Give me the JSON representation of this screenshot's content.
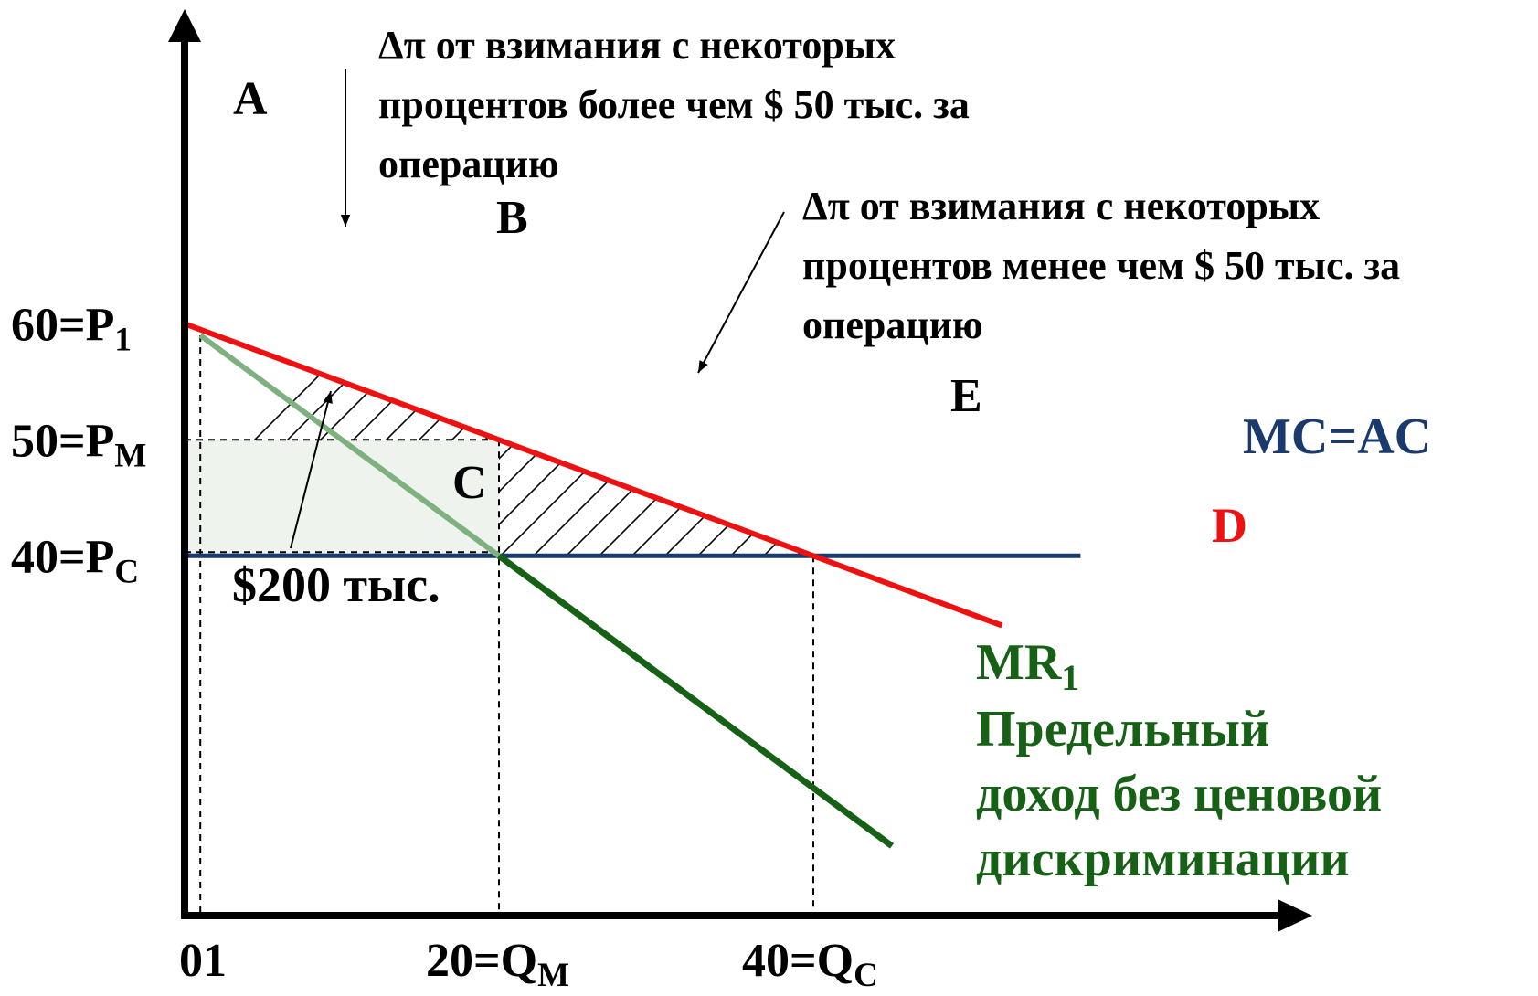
{
  "chart_data": {
    "type": "line",
    "title": "",
    "xlabel": "",
    "ylabel": "",
    "y_ticks": [
      {
        "value": 60,
        "label": "60=P",
        "sub": "1"
      },
      {
        "value": 50,
        "label": "50=P",
        "sub": "M"
      },
      {
        "value": 40,
        "label": "40=P",
        "sub": "C"
      }
    ],
    "x_ticks": [
      {
        "value": 1,
        "label": "01",
        "sub": ""
      },
      {
        "value": 20,
        "label": "20=Q",
        "sub": "M"
      },
      {
        "value": 40,
        "label": "40=Q",
        "sub": "C"
      }
    ],
    "series": [
      {
        "name": "D",
        "color": "#ee1111",
        "points": [
          [
            0,
            60
          ],
          [
            52,
            34
          ]
        ]
      },
      {
        "name": "MR",
        "name_sub": "1",
        "color": "#176117",
        "points": [
          [
            1,
            59
          ],
          [
            20,
            40
          ],
          [
            45,
            15
          ]
        ]
      },
      {
        "name": "MC=AC",
        "color": "#1a3a6e",
        "points": [
          [
            0,
            40
          ],
          [
            57,
            40
          ]
        ]
      }
    ],
    "points": [
      {
        "id": "A",
        "x": 1,
        "y": 59.5
      },
      {
        "id": "B",
        "x": 20,
        "y": 50
      },
      {
        "id": "C",
        "x": 20,
        "y": 40
      },
      {
        "id": "E",
        "x": 40,
        "y": 40
      }
    ],
    "shaded_regions": [
      {
        "name": "profit-rectangle",
        "corners": [
          [
            0,
            50
          ],
          [
            20,
            40
          ]
        ],
        "label": "$200 тыс."
      },
      {
        "name": "hatch-above-50",
        "polygon": [
          [
            0,
            60
          ],
          [
            0,
            50
          ],
          [
            20,
            50
          ]
        ]
      },
      {
        "name": "hatch-below-50",
        "polygon": [
          [
            20,
            50
          ],
          [
            40,
            40
          ],
          [
            20,
            40
          ]
        ]
      }
    ],
    "annotations": [
      {
        "name": "upper-note",
        "lines": [
          "Δπ от взимания с некоторых",
          "процентов более чем $ 50 тыс. за",
          "операцию"
        ]
      },
      {
        "name": "right-note",
        "lines": [
          "Δπ от взимания с некоторых",
          "процентов менее чем $ 50 тыс. за",
          "операцию"
        ]
      },
      {
        "name": "area-note",
        "text": "$200 тыс."
      }
    ],
    "mr_description": [
      "Предельный",
      "доход без ценовой",
      "дискриминации"
    ],
    "xlim": [
      0,
      57
    ],
    "ylim": [
      9,
      66
    ],
    "grid": false
  }
}
